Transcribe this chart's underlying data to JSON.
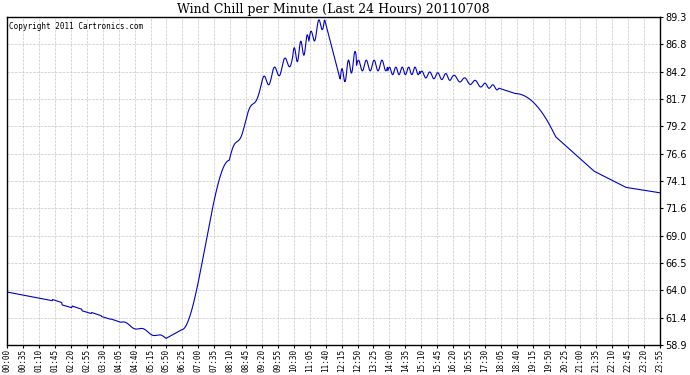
{
  "title": "Wind Chill per Minute (Last 24 Hours) 20110708",
  "copyright": "Copyright 2011 Cartronics.com",
  "line_color": "#0000cc",
  "background_color": "#ffffff",
  "grid_color": "#c8c8c8",
  "ylim": [
    58.9,
    89.3
  ],
  "yticks": [
    58.9,
    61.4,
    64.0,
    66.5,
    69.0,
    71.6,
    74.1,
    76.6,
    79.2,
    81.7,
    84.2,
    86.8,
    89.3
  ],
  "xtick_labels": [
    "00:00",
    "00:35",
    "01:10",
    "01:45",
    "02:20",
    "02:55",
    "03:30",
    "04:05",
    "04:40",
    "05:15",
    "05:50",
    "06:25",
    "07:00",
    "07:35",
    "08:10",
    "08:45",
    "09:20",
    "09:55",
    "10:30",
    "11:05",
    "11:40",
    "12:15",
    "12:50",
    "13:25",
    "14:00",
    "14:35",
    "15:10",
    "15:45",
    "16:20",
    "16:55",
    "17:30",
    "18:05",
    "18:40",
    "19:15",
    "19:50",
    "20:25",
    "21:00",
    "21:35",
    "22:10",
    "22:45",
    "23:20",
    "23:55"
  ]
}
